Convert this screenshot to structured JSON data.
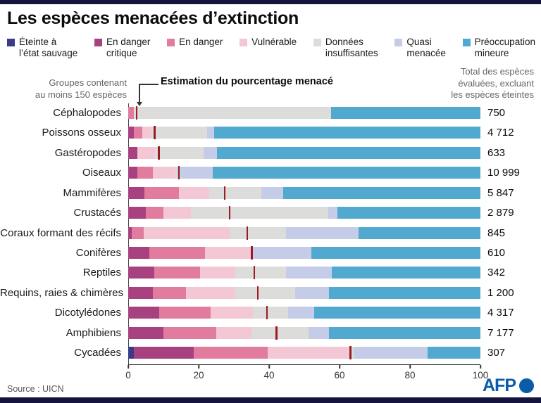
{
  "page": {
    "title": "Les espèces menacées d’extinction",
    "source": "Source : UICN",
    "brand": "AFP",
    "edge_bar_color": "#14143f",
    "brand_blue": "#0b5ca8"
  },
  "annotations": {
    "left_note": "Groupes contenant\nau moins 150 espèces",
    "estimation_note": "Estimation du pourcentage menacé",
    "right_note": "Total des espèces\névaluées, excluant\nles espèces éteintes"
  },
  "chart_data": {
    "type": "bar",
    "stacked": true,
    "orientation": "horizontal",
    "unit": "%",
    "xlim": [
      0,
      100
    ],
    "axis_ticks": [
      0,
      20,
      40,
      60,
      80,
      100
    ],
    "tick_marker_color": "#9c1b20",
    "tick_marker_meaning": "Estimation du pourcentage menacé",
    "legend_position": "top",
    "categories": [
      {
        "id": "ew",
        "label": "Éteinte à\nl’état sauvage",
        "color": "#3c3a87"
      },
      {
        "id": "cr",
        "label": "En danger\ncritique",
        "color": "#a8417f"
      },
      {
        "id": "en",
        "label": "En danger",
        "color": "#e27c9e"
      },
      {
        "id": "vu",
        "label": "Vulnérable",
        "color": "#f3c7d3"
      },
      {
        "id": "dd",
        "label": "Données\ninsuffisantes",
        "color": "#dcdcda"
      },
      {
        "id": "nt",
        "label": "Quasi\nmenacée",
        "color": "#c4cce7"
      },
      {
        "id": "lc",
        "label": "Préoccupation\nmineure",
        "color": "#52a9d0"
      }
    ],
    "rows": [
      {
        "label": "Céphalopodes",
        "total": "750",
        "threat_pct": 2.3,
        "segments": [
          {
            "c": "en",
            "v": 1.5
          },
          {
            "c": "dd",
            "v": 56.0
          },
          {
            "c": "lc",
            "v": 42.5
          }
        ]
      },
      {
        "label": "Poissons osseux",
        "total": "4 712",
        "threat_pct": 7.4,
        "segments": [
          {
            "c": "cr",
            "v": 1.6
          },
          {
            "c": "en",
            "v": 2.4
          },
          {
            "c": "vu",
            "v": 2.5
          },
          {
            "c": "dd",
            "v": 15.8
          },
          {
            "c": "nt",
            "v": 2.1
          },
          {
            "c": "lc",
            "v": 75.6
          }
        ]
      },
      {
        "label": "Gastéropodes",
        "total": "633",
        "threat_pct": 8.6,
        "segments": [
          {
            "c": "cr",
            "v": 2.5
          },
          {
            "c": "vu",
            "v": 5.1
          },
          {
            "c": "dd",
            "v": 13.7
          },
          {
            "c": "nt",
            "v": 3.9
          },
          {
            "c": "lc",
            "v": 74.8
          }
        ]
      },
      {
        "label": "Oiseaux",
        "total": "10 999",
        "threat_pct": 14.3,
        "segments": [
          {
            "c": "cr",
            "v": 2.6
          },
          {
            "c": "en",
            "v": 4.4
          },
          {
            "c": "vu",
            "v": 6.3
          },
          {
            "c": "dd",
            "v": 0.5
          },
          {
            "c": "nt",
            "v": 10.2
          },
          {
            "c": "lc",
            "v": 76.0
          }
        ]
      },
      {
        "label": "Mammifères",
        "total": "5 847",
        "threat_pct": 27.3,
        "segments": [
          {
            "c": "cr",
            "v": 4.6
          },
          {
            "c": "en",
            "v": 9.7
          },
          {
            "c": "vu",
            "v": 8.7
          },
          {
            "c": "dd",
            "v": 14.7
          },
          {
            "c": "nt",
            "v": 6.3
          },
          {
            "c": "lc",
            "v": 56.0
          }
        ]
      },
      {
        "label": "Crustacés",
        "total": "2 879",
        "threat_pct": 28.7,
        "segments": [
          {
            "c": "cr",
            "v": 5.0
          },
          {
            "c": "en",
            "v": 5.0
          },
          {
            "c": "vu",
            "v": 7.7
          },
          {
            "c": "dd",
            "v": 39.0
          },
          {
            "c": "nt",
            "v": 2.6
          },
          {
            "c": "lc",
            "v": 40.7
          }
        ]
      },
      {
        "label": "Coraux formant des récifs",
        "total": "845",
        "threat_pct": 33.7,
        "segments": [
          {
            "c": "cr",
            "v": 1.0
          },
          {
            "c": "en",
            "v": 3.3
          },
          {
            "c": "vu",
            "v": 24.4
          },
          {
            "c": "dd",
            "v": 16.0
          },
          {
            "c": "nt",
            "v": 20.6
          },
          {
            "c": "lc",
            "v": 34.7
          }
        ]
      },
      {
        "label": "Conifères",
        "total": "610",
        "threat_pct": 35.0,
        "segments": [
          {
            "c": "cr",
            "v": 6.0
          },
          {
            "c": "en",
            "v": 15.7
          },
          {
            "c": "vu",
            "v": 13.0
          },
          {
            "c": "dd",
            "v": 0.6
          },
          {
            "c": "nt",
            "v": 16.7
          },
          {
            "c": "lc",
            "v": 48.0
          }
        ]
      },
      {
        "label": "Reptiles",
        "total": "342",
        "threat_pct": 35.7,
        "segments": [
          {
            "c": "cr",
            "v": 7.3
          },
          {
            "c": "en",
            "v": 13.0
          },
          {
            "c": "vu",
            "v": 10.0
          },
          {
            "c": "dd",
            "v": 14.5
          },
          {
            "c": "nt",
            "v": 12.9
          },
          {
            "c": "lc",
            "v": 42.3
          }
        ]
      },
      {
        "label": "Requins, raies & chimères",
        "total": "1 200",
        "threat_pct": 36.7,
        "segments": [
          {
            "c": "cr",
            "v": 7.0
          },
          {
            "c": "en",
            "v": 9.3
          },
          {
            "c": "vu",
            "v": 14.0
          },
          {
            "c": "dd",
            "v": 17.0
          },
          {
            "c": "nt",
            "v": 9.7
          },
          {
            "c": "lc",
            "v": 43.0
          }
        ]
      },
      {
        "label": "Dicotylédones",
        "total": "4 317",
        "threat_pct": 39.3,
        "segments": [
          {
            "c": "cr",
            "v": 8.7
          },
          {
            "c": "en",
            "v": 14.6
          },
          {
            "c": "vu",
            "v": 12.0
          },
          {
            "c": "dd",
            "v": 10.0
          },
          {
            "c": "nt",
            "v": 7.4
          },
          {
            "c": "lc",
            "v": 47.3
          }
        ]
      },
      {
        "label": "Amphibiens",
        "total": "7 177",
        "threat_pct": 42.0,
        "segments": [
          {
            "c": "cr",
            "v": 10.0
          },
          {
            "c": "en",
            "v": 15.0
          },
          {
            "c": "vu",
            "v": 10.0
          },
          {
            "c": "dd",
            "v": 16.3
          },
          {
            "c": "nt",
            "v": 5.7
          },
          {
            "c": "lc",
            "v": 43.0
          }
        ]
      },
      {
        "label": "Cycadées",
        "total": "307",
        "threat_pct": 63.0,
        "segments": [
          {
            "c": "ew",
            "v": 1.5
          },
          {
            "c": "cr",
            "v": 17.0
          },
          {
            "c": "en",
            "v": 21.0
          },
          {
            "c": "vu",
            "v": 23.0
          },
          {
            "c": "dd",
            "v": 1.5
          },
          {
            "c": "nt",
            "v": 21.0
          },
          {
            "c": "lc",
            "v": 15.0
          }
        ]
      }
    ],
    "title": "Les espèces menacées d’extinction",
    "xlabel": "",
    "ylabel": ""
  }
}
